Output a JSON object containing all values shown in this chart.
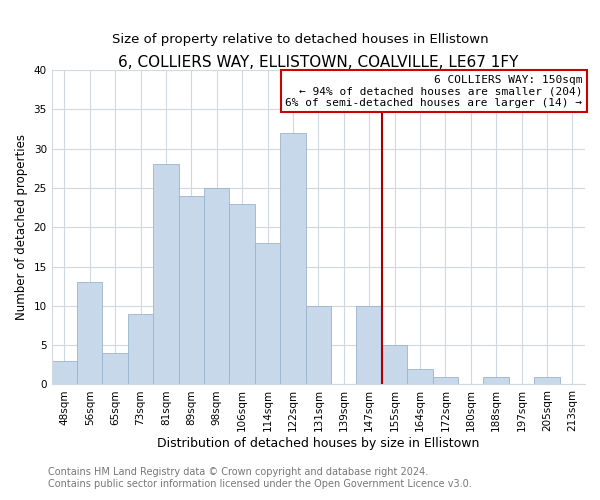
{
  "title": "6, COLLIERS WAY, ELLISTOWN, COALVILLE, LE67 1FY",
  "subtitle": "Size of property relative to detached houses in Ellistown",
  "xlabel": "Distribution of detached houses by size in Ellistown",
  "ylabel": "Number of detached properties",
  "bar_labels": [
    "48sqm",
    "56sqm",
    "65sqm",
    "73sqm",
    "81sqm",
    "89sqm",
    "98sqm",
    "106sqm",
    "114sqm",
    "122sqm",
    "131sqm",
    "139sqm",
    "147sqm",
    "155sqm",
    "164sqm",
    "172sqm",
    "180sqm",
    "188sqm",
    "197sqm",
    "205sqm",
    "213sqm"
  ],
  "bar_values": [
    3,
    13,
    4,
    9,
    28,
    24,
    25,
    23,
    18,
    32,
    10,
    0,
    10,
    5,
    2,
    1,
    0,
    1,
    0,
    1,
    0
  ],
  "bar_color": "#c8d8eb",
  "bar_edge_color": "#9ab4cc",
  "vline_index": 13,
  "vline_color": "#aa0000",
  "annotation_title": "6 COLLIERS WAY: 150sqm",
  "annotation_line1": "← 94% of detached houses are smaller (204)",
  "annotation_line2": "6% of semi-detached houses are larger (14) →",
  "annotation_box_color": "#ffffff",
  "annotation_box_edge": "#cc0000",
  "footer1": "Contains HM Land Registry data © Crown copyright and database right 2024.",
  "footer2": "Contains public sector information licensed under the Open Government Licence v3.0.",
  "ylim": [
    0,
    40
  ],
  "yticks": [
    0,
    5,
    10,
    15,
    20,
    25,
    30,
    35,
    40
  ],
  "background_color": "#ffffff",
  "grid_color": "#d0d8e0",
  "title_fontsize": 11,
  "subtitle_fontsize": 9.5,
  "xlabel_fontsize": 9,
  "ylabel_fontsize": 8.5,
  "tick_fontsize": 7.5,
  "footer_fontsize": 7,
  "annotation_fontsize": 8
}
